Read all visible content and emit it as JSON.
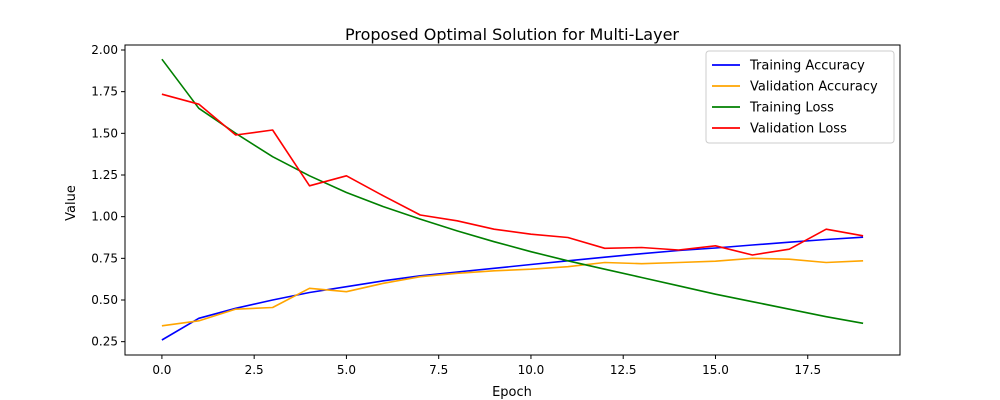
{
  "chart_data": {
    "type": "line",
    "title": "Proposed Optimal Solution for Multi-Layer",
    "xlabel": "Epoch",
    "ylabel": "Value",
    "xlim": [
      -1,
      20
    ],
    "ylim": [
      0.17,
      2.03
    ],
    "x_ticks": [
      0,
      2.5,
      5,
      7.5,
      10,
      12.5,
      15,
      17.5
    ],
    "x_tick_labels": [
      "0.0",
      "2.5",
      "5.0",
      "7.5",
      "10.0",
      "12.5",
      "15.0",
      "17.5"
    ],
    "y_ticks": [
      0.25,
      0.5,
      0.75,
      1.0,
      1.25,
      1.5,
      1.75,
      2.0
    ],
    "y_tick_labels": [
      "0.25",
      "0.50",
      "0.75",
      "1.00",
      "1.25",
      "1.50",
      "1.75",
      "2.00"
    ],
    "legend_position": "top-right",
    "x": [
      0,
      1,
      2,
      3,
      4,
      5,
      6,
      7,
      8,
      9,
      10,
      11,
      12,
      13,
      14,
      15,
      16,
      17,
      18,
      19
    ],
    "series": [
      {
        "name": "Training Accuracy",
        "color": "#0000ff",
        "values": [
          0.26,
          0.39,
          0.45,
          0.5,
          0.545,
          0.58,
          0.615,
          0.645,
          0.668,
          0.69,
          0.713,
          0.735,
          0.757,
          0.778,
          0.797,
          0.812,
          0.83,
          0.847,
          0.863,
          0.877
        ]
      },
      {
        "name": "Validation Accuracy",
        "color": "#ffa500",
        "values": [
          0.345,
          0.375,
          0.445,
          0.455,
          0.57,
          0.55,
          0.6,
          0.64,
          0.66,
          0.675,
          0.685,
          0.7,
          0.725,
          0.718,
          0.725,
          0.733,
          0.75,
          0.745,
          0.725,
          0.735
        ]
      },
      {
        "name": "Training Loss",
        "color": "#008000",
        "values": [
          1.945,
          1.65,
          1.5,
          1.36,
          1.245,
          1.145,
          1.06,
          0.985,
          0.915,
          0.85,
          0.79,
          0.735,
          0.685,
          0.635,
          0.585,
          0.535,
          0.49,
          0.445,
          0.4,
          0.36
        ]
      },
      {
        "name": "Validation Loss",
        "color": "#ff0000",
        "values": [
          1.735,
          1.675,
          1.49,
          1.52,
          1.185,
          1.245,
          1.125,
          1.01,
          0.975,
          0.925,
          0.895,
          0.875,
          0.81,
          0.815,
          0.8,
          0.825,
          0.77,
          0.805,
          0.925,
          0.885
        ]
      }
    ]
  }
}
